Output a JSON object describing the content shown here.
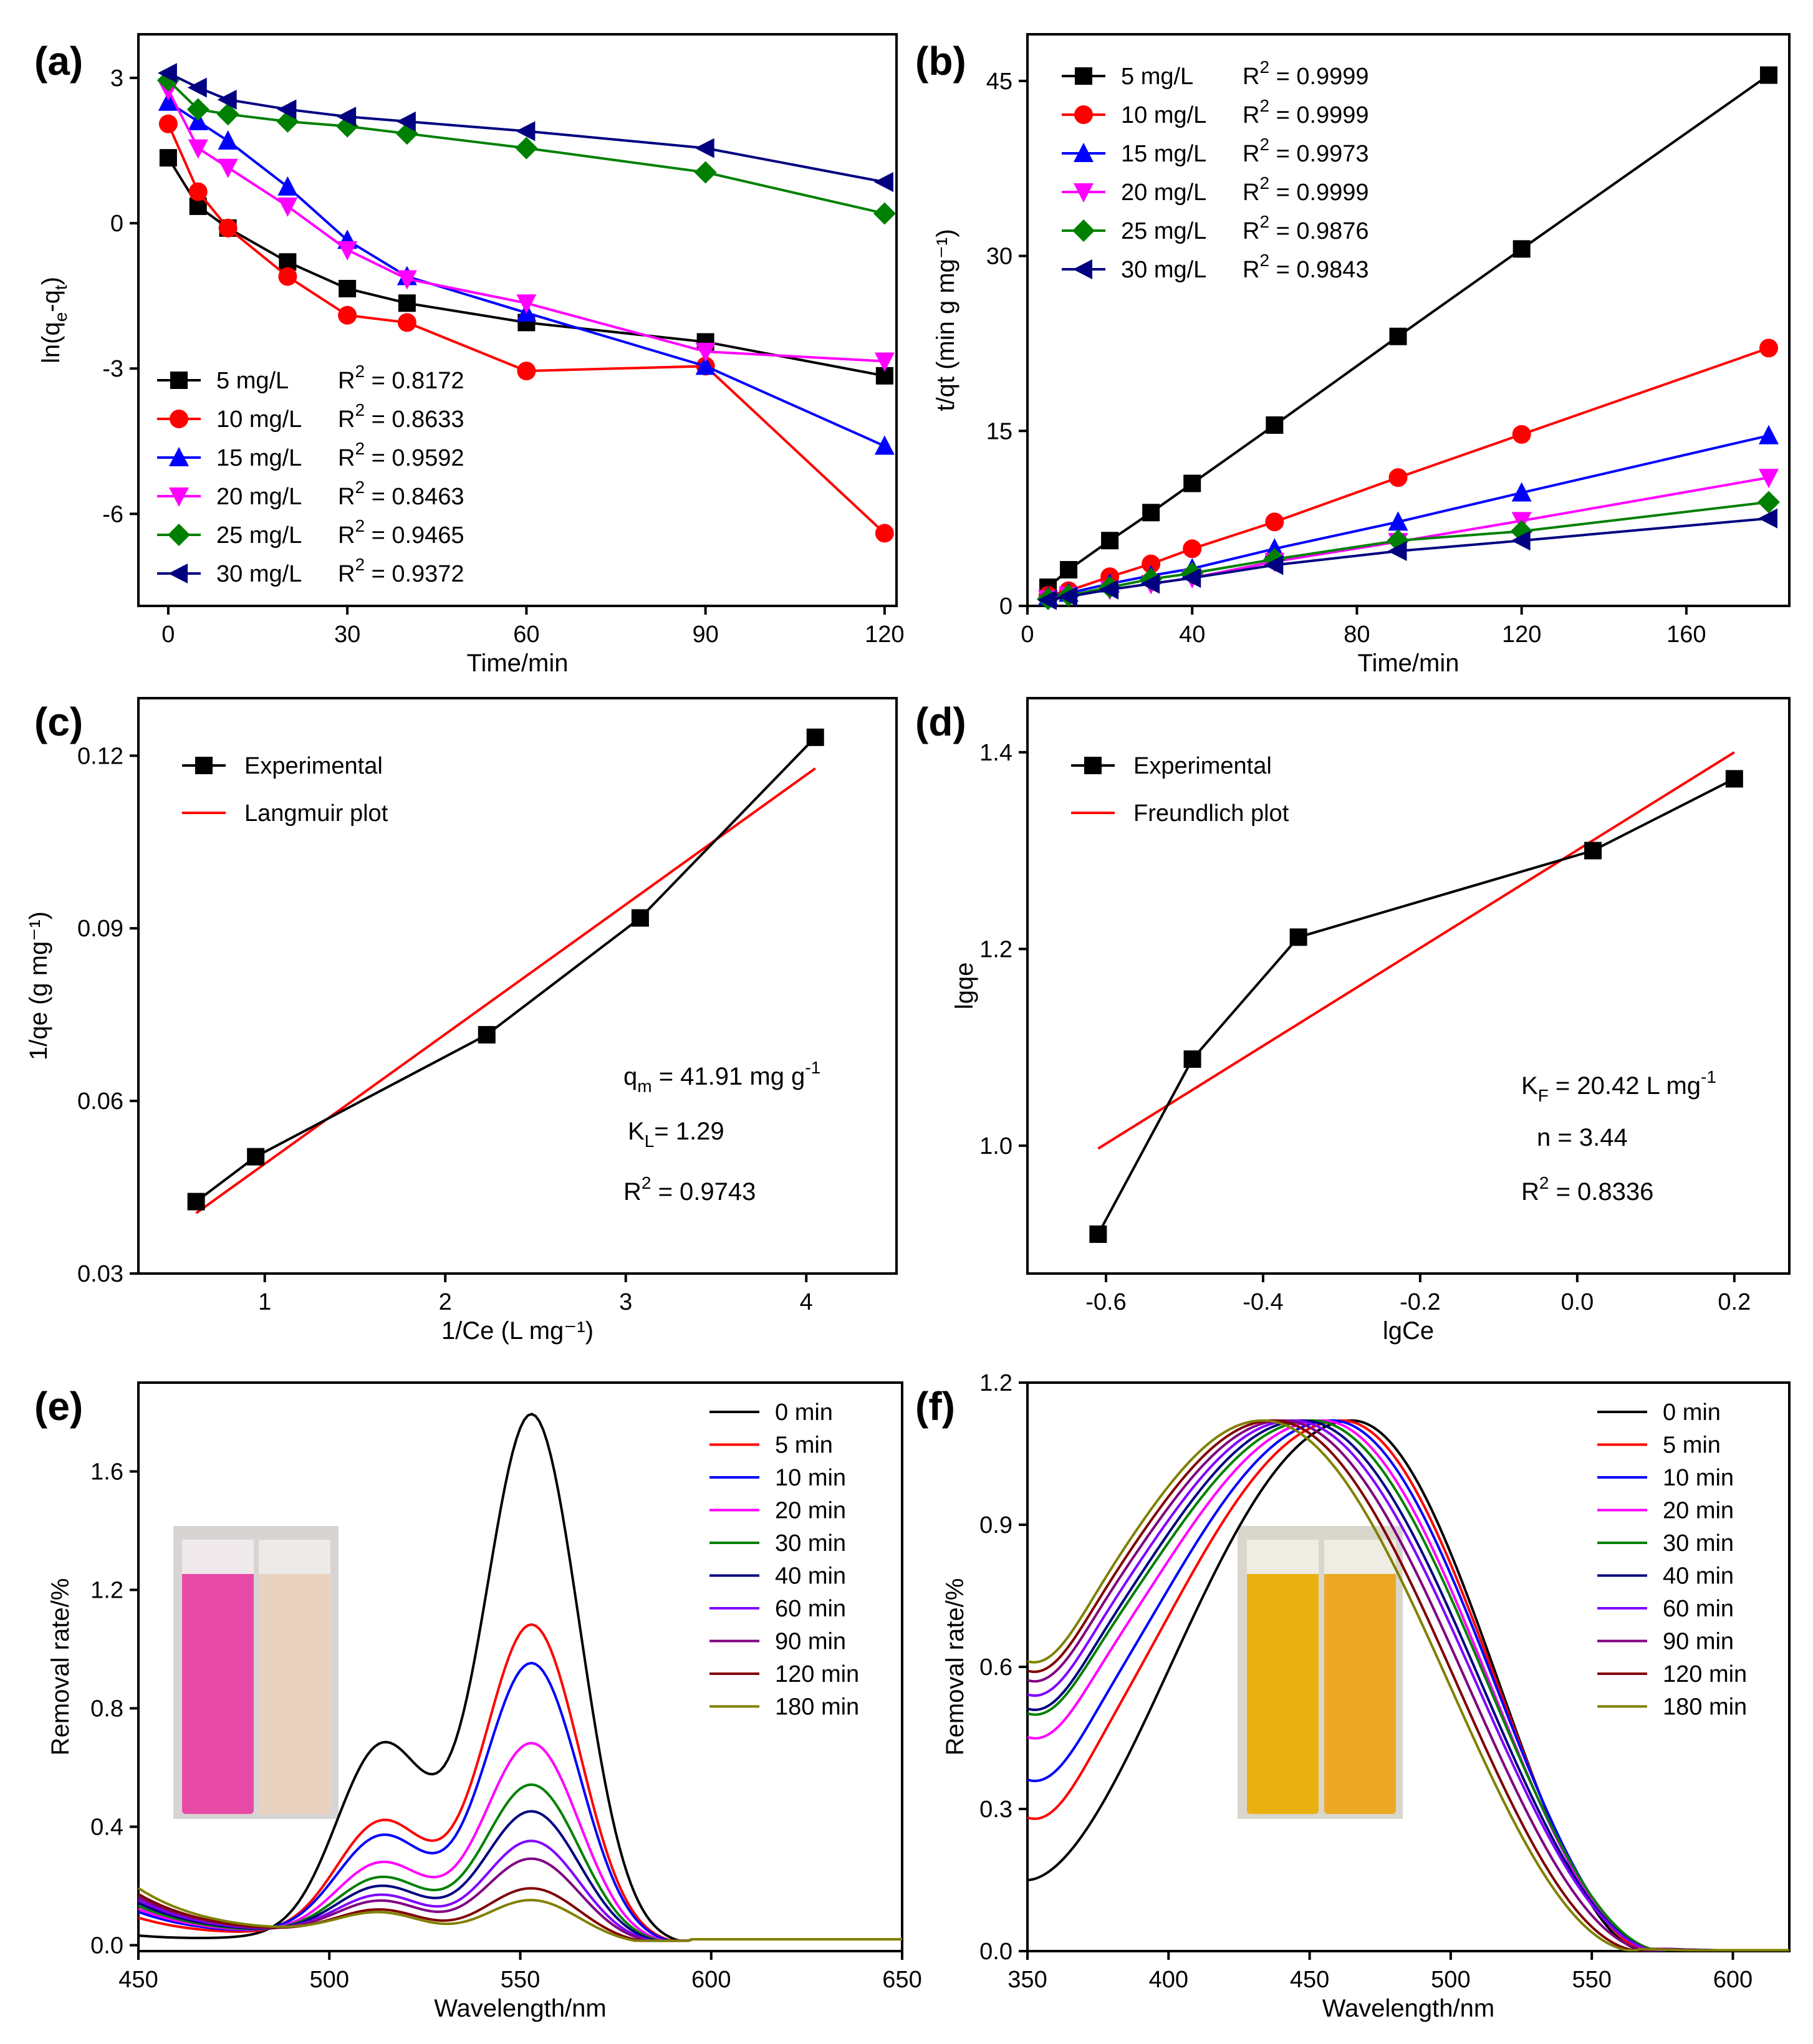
{
  "chart_data": [
    {
      "id": "a",
      "type": "line",
      "panel_label": "(a)",
      "xlabel": "Time/min",
      "ylabel": "ln(qe-qt)",
      "ylabel_main": "ln(q",
      "ylabel_sub1": "e",
      "ylabel_mid": "-q",
      "ylabel_sub2": "t",
      "ylabel_end": ")",
      "xlim": [
        -5,
        122
      ],
      "ylim": [
        -7.9,
        3.9
      ],
      "xticks": [
        0,
        30,
        60,
        90,
        120
      ],
      "yticks": [
        3,
        0,
        -3,
        -6
      ],
      "x": [
        0,
        5,
        10,
        20,
        30,
        40,
        60,
        90,
        120
      ],
      "legend_position": "bottom-left",
      "series": [
        {
          "name": "5 mg/L",
          "r2_label": "R",
          "r2_value": " = 0.8172",
          "color": "#000000",
          "marker": "square",
          "values": [
            1.35,
            0.35,
            -0.1,
            -0.8,
            -1.35,
            -1.65,
            -2.05,
            -2.45,
            -3.15
          ]
        },
        {
          "name": "10 mg/L",
          "r2_label": "R",
          "r2_value": " = 0.8633",
          "color": "#ff0000",
          "marker": "circle",
          "values": [
            2.05,
            0.65,
            -0.1,
            -1.1,
            -1.9,
            -2.05,
            -3.05,
            -2.95,
            -6.4
          ]
        },
        {
          "name": "15 mg/L",
          "r2_label": "R",
          "r2_value": " = 0.9592",
          "color": "#0000ff",
          "marker": "triangle-up",
          "values": [
            2.5,
            2.1,
            1.7,
            0.75,
            -0.35,
            -1.1,
            -1.85,
            -2.95,
            -4.6
          ]
        },
        {
          "name": "20 mg/L",
          "r2_label": "R",
          "r2_value": " = 0.8463",
          "color": "#ff00ff",
          "marker": "triangle-down",
          "values": [
            2.75,
            1.55,
            1.15,
            0.35,
            -0.55,
            -1.15,
            -1.65,
            -2.65,
            -2.85
          ]
        },
        {
          "name": "25 mg/L",
          "r2_label": "R",
          "r2_value": " = 0.9465",
          "color": "#008000",
          "marker": "diamond",
          "values": [
            2.95,
            2.35,
            2.25,
            2.1,
            2.0,
            1.85,
            1.55,
            1.05,
            0.2
          ]
        },
        {
          "name": "30 mg/L",
          "r2_label": "R",
          "r2_value": " = 0.9372",
          "color": "#000080",
          "marker": "triangle-left",
          "values": [
            3.1,
            2.8,
            2.55,
            2.35,
            2.2,
            2.1,
            1.9,
            1.55,
            0.85
          ]
        }
      ]
    },
    {
      "id": "b",
      "type": "line",
      "panel_label": "(b)",
      "xlabel": "Time/min",
      "ylabel": "t/qt (min g mg⁻¹)",
      "xlim": [
        0,
        185
      ],
      "ylim": [
        0,
        49
      ],
      "xticks": [
        0,
        40,
        80,
        120,
        160
      ],
      "yticks": [
        0,
        15,
        30,
        45
      ],
      "x": [
        5,
        10,
        20,
        30,
        40,
        60,
        90,
        120,
        180
      ],
      "legend_position": "top-left",
      "series": [
        {
          "name": "5 mg/L",
          "r2_label": "R",
          "r2_value": " = 0.9999",
          "color": "#000000",
          "marker": "square",
          "values": [
            1.6,
            3.1,
            5.6,
            8.0,
            10.5,
            15.5,
            23.1,
            30.6,
            45.5
          ]
        },
        {
          "name": "10 mg/L",
          "r2_label": "R",
          "r2_value": " = 0.9999",
          "color": "#ff0000",
          "marker": "circle",
          "values": [
            0.9,
            1.3,
            2.5,
            3.6,
            4.9,
            7.2,
            11.0,
            14.7,
            22.1
          ]
        },
        {
          "name": "15 mg/L",
          "r2_label": "R",
          "r2_value": " = 0.9973",
          "color": "#0000ff",
          "marker": "triangle-up",
          "values": [
            0.8,
            1.1,
            1.9,
            2.6,
            3.2,
            4.9,
            7.2,
            9.7,
            14.6
          ]
        },
        {
          "name": "20 mg/L",
          "r2_label": "R",
          "r2_value": " = 0.9999",
          "color": "#ff00ff",
          "marker": "triangle-down",
          "values": [
            0.6,
            0.9,
            1.4,
            1.9,
            2.4,
            3.8,
            5.5,
            7.3,
            11.0
          ]
        },
        {
          "name": "25 mg/L",
          "r2_label": "R",
          "r2_value": " = 0.9876",
          "color": "#008000",
          "marker": "diamond",
          "values": [
            0.6,
            0.9,
            1.6,
            2.3,
            2.8,
            4.0,
            5.6,
            6.4,
            8.9
          ]
        },
        {
          "name": "30 mg/L",
          "r2_label": "R",
          "r2_value": " = 0.9843",
          "color": "#000080",
          "marker": "triangle-left",
          "values": [
            0.5,
            0.8,
            1.4,
            1.9,
            2.4,
            3.5,
            4.7,
            5.6,
            7.5
          ]
        }
      ]
    },
    {
      "id": "c",
      "type": "line",
      "panel_label": "(c)",
      "xlabel": "1/Ce (L mg⁻¹)",
      "ylabel": "1/qe (g mg⁻¹)",
      "xlim": [
        0.3,
        4.5
      ],
      "ylim": [
        0.03,
        0.13
      ],
      "xticks": [
        1,
        2,
        3,
        4
      ],
      "yticks": [
        0.03,
        0.06,
        0.09,
        0.12
      ],
      "ytick_labels": [
        "0.03",
        "0.06",
        "0.09",
        "0.12"
      ],
      "legend_position": "top-left",
      "experimental": {
        "name": "Experimental",
        "color": "#000000",
        "x": [
          0.62,
          0.95,
          2.23,
          3.08,
          4.05
        ],
        "y": [
          0.0425,
          0.0503,
          0.0715,
          0.0918,
          0.1232
        ]
      },
      "fit": {
        "name": "Langmuir plot",
        "color": "#ff0000",
        "x": [
          0.62,
          4.05
        ],
        "y": [
          0.0405,
          0.1178
        ]
      },
      "annotations": {
        "qm_label": "q",
        "qm_sub": "m",
        "qm_value": " = 41.91 mg g",
        "qm_exp": "-1",
        "kl_label": "K",
        "kl_sub": "L",
        "kl_value": "= 1.29",
        "r2_label": "R",
        "r2_exp": "2",
        "r2_value": " = 0.9743"
      }
    },
    {
      "id": "d",
      "type": "line",
      "panel_label": "(d)",
      "xlabel": "lgCe",
      "ylabel": "lgqe",
      "xlim": [
        -0.7,
        0.27
      ],
      "ylim": [
        0.87,
        1.455
      ],
      "xticks": [
        -0.6,
        -0.4,
        -0.2,
        0.0,
        0.2
      ],
      "xtick_labels": [
        "-0.6",
        "-0.4",
        "-0.2",
        "0.0",
        "0.2"
      ],
      "yticks": [
        1.0,
        1.2,
        1.4
      ],
      "ytick_labels": [
        "1.0",
        "1.2",
        "1.4"
      ],
      "legend_position": "top-left",
      "experimental": {
        "name": "Experimental",
        "color": "#000000",
        "x": [
          -0.61,
          -0.49,
          -0.355,
          0.02,
          0.2
        ],
        "y": [
          0.91,
          1.088,
          1.212,
          1.3,
          1.373
        ]
      },
      "fit": {
        "name": "Freundlich plot",
        "color": "#ff0000",
        "x": [
          -0.61,
          0.2
        ],
        "y": [
          0.997,
          1.4
        ]
      },
      "annotations": {
        "kf_label": "K",
        "kf_sub": "F",
        "kf_value": " = 20.42 L mg",
        "kf_exp": "-1",
        "n_text": "n = 3.44",
        "r2_label": "R",
        "r2_exp": "2",
        "r2_value": " = 0.8336"
      }
    },
    {
      "id": "e",
      "type": "line",
      "panel_label": "(e)",
      "xlabel": "Wavelength/nm",
      "ylabel": "Removal rate/%",
      "xlim": [
        450,
        650
      ],
      "ylim": [
        -0.02,
        1.9
      ],
      "xticks": [
        450,
        500,
        550,
        600,
        650
      ],
      "yticks": [
        0.0,
        0.4,
        0.8,
        1.2,
        1.6
      ],
      "ytick_labels": [
        "0.0",
        "0.4",
        "0.8",
        "1.2",
        "1.6"
      ],
      "legend_position": "top-right",
      "inset": "pink and colorless cuvettes photo",
      "series": [
        {
          "name": "0 min",
          "color": "#000000",
          "peak": 1.79,
          "shoulder": 0.66,
          "edge": 0.03
        },
        {
          "name": "5 min",
          "color": "#ff0000",
          "peak": 1.08,
          "shoulder": 0.4,
          "edge": 0.09
        },
        {
          "name": "10 min",
          "color": "#0000ff",
          "peak": 0.95,
          "shoulder": 0.35,
          "edge": 0.11
        },
        {
          "name": "20 min",
          "color": "#ff00ff",
          "peak": 0.68,
          "shoulder": 0.26,
          "edge": 0.12
        },
        {
          "name": "30 min",
          "color": "#008000",
          "peak": 0.54,
          "shoulder": 0.21,
          "edge": 0.13
        },
        {
          "name": "40 min",
          "color": "#000080",
          "peak": 0.45,
          "shoulder": 0.18,
          "edge": 0.14
        },
        {
          "name": "60 min",
          "color": "#8000ff",
          "peak": 0.35,
          "shoulder": 0.15,
          "edge": 0.15
        },
        {
          "name": "90 min",
          "color": "#800080",
          "peak": 0.29,
          "shoulder": 0.13,
          "edge": 0.16
        },
        {
          "name": "120 min",
          "color": "#800000",
          "peak": 0.19,
          "shoulder": 0.1,
          "edge": 0.17
        },
        {
          "name": "180 min",
          "color": "#808000",
          "peak": 0.15,
          "shoulder": 0.09,
          "edge": 0.19
        }
      ]
    },
    {
      "id": "f",
      "type": "line",
      "panel_label": "(f)",
      "xlabel": "Wavelength/nm",
      "ylabel": "Removal rate/%",
      "xlim": [
        350,
        620
      ],
      "ylim": [
        0.0,
        1.2
      ],
      "xticks": [
        350,
        400,
        450,
        500,
        550,
        600
      ],
      "yticks": [
        0.0,
        0.3,
        0.6,
        0.9,
        1.2
      ],
      "ytick_labels": [
        "0.0",
        "0.3",
        "0.6",
        "0.9",
        "1.2"
      ],
      "legend_position": "top-right",
      "inset": "two yellow-orange cuvettes photo",
      "series": [
        {
          "name": "0 min",
          "color": "#000000",
          "start": 0.15,
          "cut": 570
        },
        {
          "name": "5 min",
          "color": "#ff0000",
          "start": 0.33,
          "cut": 572
        },
        {
          "name": "10 min",
          "color": "#0000ff",
          "start": 0.41,
          "cut": 574
        },
        {
          "name": "20 min",
          "color": "#ff00ff",
          "start": 0.5,
          "cut": 574
        },
        {
          "name": "30 min",
          "color": "#008000",
          "start": 0.55,
          "cut": 576
        },
        {
          "name": "40 min",
          "color": "#000080",
          "start": 0.56,
          "cut": 575
        },
        {
          "name": "60 min",
          "color": "#8000ff",
          "start": 0.59,
          "cut": 575
        },
        {
          "name": "90 min",
          "color": "#800080",
          "start": 0.62,
          "cut": 572
        },
        {
          "name": "120 min",
          "color": "#800000",
          "start": 0.64,
          "cut": 568
        },
        {
          "name": "180 min",
          "color": "#808000",
          "start": 0.66,
          "cut": 566
        }
      ]
    }
  ]
}
